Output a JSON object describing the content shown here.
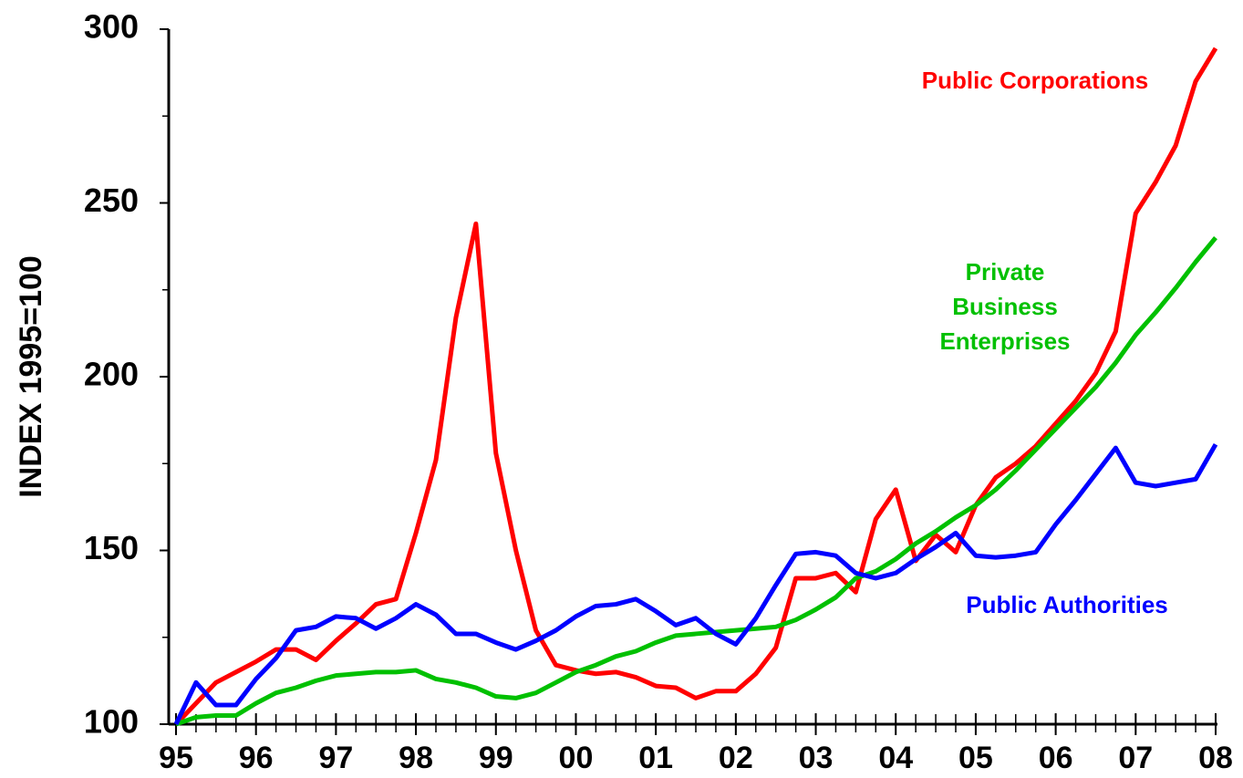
{
  "chart_data": {
    "type": "line",
    "ylabel": "INDEX 1995=100",
    "x": [
      0,
      1,
      2,
      3,
      4,
      5,
      6,
      7,
      8,
      9,
      10,
      11,
      12,
      13,
      14,
      15,
      16,
      17,
      18,
      19,
      20,
      21,
      22,
      23,
      24,
      25,
      26,
      27,
      28,
      29,
      30,
      31,
      32,
      33,
      34,
      35,
      36,
      37,
      38,
      39,
      40,
      41,
      42,
      43,
      44,
      45,
      46,
      47,
      48,
      49,
      50,
      51,
      52
    ],
    "xlim": [
      0,
      52
    ],
    "xticks": [
      {
        "value": 0,
        "label": "95"
      },
      {
        "value": 4,
        "label": "96"
      },
      {
        "value": 8,
        "label": "97"
      },
      {
        "value": 12,
        "label": "98"
      },
      {
        "value": 16,
        "label": "99"
      },
      {
        "value": 20,
        "label": "00"
      },
      {
        "value": 24,
        "label": "01"
      },
      {
        "value": 28,
        "label": "02"
      },
      {
        "value": 32,
        "label": "03"
      },
      {
        "value": 36,
        "label": "04"
      },
      {
        "value": 40,
        "label": "05"
      },
      {
        "value": 44,
        "label": "06"
      },
      {
        "value": 48,
        "label": "07"
      },
      {
        "value": 52,
        "label": "08"
      }
    ],
    "ylim": [
      100,
      300
    ],
    "yticks": [
      100,
      150,
      200,
      250,
      300
    ],
    "yminorticks": [
      125,
      175,
      225,
      275
    ],
    "grid": false,
    "series": [
      {
        "name": "Public Corporations",
        "color": "#ff0000",
        "values": [
          100,
          106,
          112,
          115,
          118,
          121.5,
          121.5,
          118.5,
          124,
          129,
          134.5,
          136,
          155,
          176,
          217,
          244,
          178,
          150,
          127,
          117,
          115.5,
          114.5,
          115,
          113.5,
          111,
          110.5,
          107.5,
          109.5,
          109.5,
          114.5,
          122,
          142,
          142,
          143.5,
          138,
          159,
          167.5,
          147,
          154.5,
          149.5,
          163,
          171,
          175,
          180,
          186.5,
          193,
          201,
          213,
          247,
          256,
          266.5,
          285,
          294.5
        ]
      },
      {
        "name": "Private Business Enterprises",
        "color": "#00c000",
        "values": [
          100,
          102,
          102.5,
          102.5,
          106,
          109,
          110.5,
          112.5,
          114,
          114.5,
          115,
          115,
          115.5,
          113,
          112,
          110.5,
          108,
          107.5,
          109,
          112,
          115,
          117,
          119.5,
          121,
          123.5,
          125.5,
          126,
          126.5,
          127,
          127.5,
          128,
          130,
          133,
          136.5,
          142,
          144,
          147.5,
          152,
          155.5,
          159.5,
          163,
          167.5,
          173,
          179,
          185,
          191,
          197,
          204,
          212,
          218.5,
          225.5,
          233,
          240
        ]
      },
      {
        "name": "Public Authorities",
        "color": "#0000ff",
        "values": [
          100,
          112,
          105.5,
          105.5,
          113,
          119,
          127,
          128,
          131,
          130.5,
          127.5,
          130.5,
          134.5,
          131.5,
          126,
          126,
          123.5,
          121.5,
          124,
          127,
          131,
          134,
          134.5,
          136,
          132.5,
          128.5,
          130.5,
          126,
          123,
          130.5,
          140,
          149,
          149.5,
          148.5,
          143.5,
          142,
          143.5,
          147.5,
          151,
          155,
          148.5,
          148,
          148.5,
          149.5,
          157.5,
          164.5,
          172,
          179.5,
          169.5,
          168.5,
          169.5,
          170.5,
          180.5
        ]
      }
    ]
  }
}
